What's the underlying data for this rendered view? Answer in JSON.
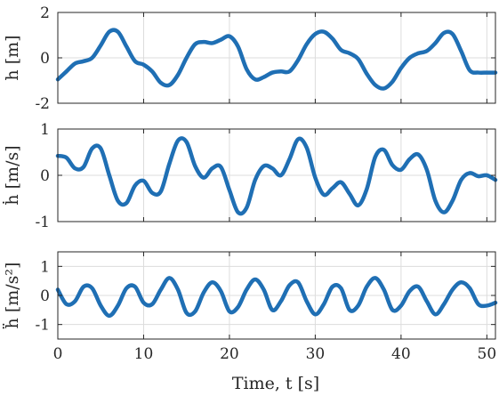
{
  "chart_data": [
    {
      "type": "line",
      "ylabel": "h [m]",
      "xlim": [
        0,
        51
      ],
      "ylim": [
        -2,
        2
      ],
      "yticks": [
        "-2",
        "0",
        "2"
      ],
      "grid": true,
      "color": "#1f6fb4",
      "x": [
        0,
        1,
        2,
        3,
        4,
        5,
        6,
        7,
        8,
        9,
        10,
        11,
        12,
        13,
        14,
        15,
        16,
        17,
        18,
        19,
        20,
        21,
        22,
        23,
        24,
        25,
        26,
        27,
        28,
        29,
        30,
        31,
        32,
        33,
        34,
        35,
        36,
        37,
        38,
        39,
        40,
        41,
        42,
        43,
        44,
        45,
        46,
        47,
        48,
        49,
        50,
        51
      ],
      "y": [
        -0.95,
        -0.6,
        -0.25,
        -0.15,
        0.0,
        0.55,
        1.15,
        1.15,
        0.5,
        -0.15,
        -0.3,
        -0.6,
        -1.1,
        -1.2,
        -0.75,
        0.0,
        0.6,
        0.7,
        0.65,
        0.8,
        0.95,
        0.5,
        -0.5,
        -0.95,
        -0.85,
        -0.65,
        -0.6,
        -0.6,
        -0.1,
        0.6,
        1.05,
        1.15,
        0.85,
        0.35,
        0.2,
        -0.05,
        -0.7,
        -1.2,
        -1.35,
        -1.05,
        -0.45,
        0.0,
        0.2,
        0.3,
        0.65,
        1.1,
        1.05,
        0.3,
        -0.55,
        -0.65,
        -0.65,
        -0.65
      ]
    },
    {
      "type": "line",
      "ylabel": "ḣ [m/s]",
      "xlim": [
        0,
        51
      ],
      "ylim": [
        -1,
        1
      ],
      "yticks": [
        "-1",
        "0",
        "1"
      ],
      "grid": true,
      "color": "#1f6fb4",
      "x": [
        0,
        1,
        2,
        3,
        4,
        5,
        6,
        7,
        8,
        9,
        10,
        11,
        12,
        13,
        14,
        15,
        16,
        17,
        18,
        19,
        20,
        21,
        22,
        23,
        24,
        25,
        26,
        27,
        28,
        29,
        30,
        31,
        32,
        33,
        34,
        35,
        36,
        37,
        38,
        39,
        40,
        41,
        42,
        43,
        44,
        45,
        46,
        47,
        48,
        49,
        50,
        51
      ],
      "y": [
        0.42,
        0.38,
        0.15,
        0.18,
        0.58,
        0.58,
        0.0,
        -0.55,
        -0.6,
        -0.22,
        -0.12,
        -0.38,
        -0.35,
        0.25,
        0.75,
        0.72,
        0.2,
        -0.05,
        0.15,
        0.18,
        -0.32,
        -0.8,
        -0.7,
        -0.1,
        0.2,
        0.15,
        0.0,
        0.35,
        0.78,
        0.6,
        -0.05,
        -0.42,
        -0.28,
        -0.15,
        -0.4,
        -0.65,
        -0.3,
        0.4,
        0.55,
        0.22,
        0.12,
        0.35,
        0.45,
        0.12,
        -0.55,
        -0.8,
        -0.55,
        -0.1,
        0.05,
        -0.02,
        0.0,
        -0.1
      ]
    },
    {
      "type": "line",
      "ylabel": "ḧ [m/s²]",
      "xlabel": "Time, t [s]",
      "xlim": [
        0,
        51
      ],
      "ylim": [
        -1.5,
        1.5
      ],
      "yticks": [
        "-1",
        "0",
        "1"
      ],
      "xticks": [
        "0",
        "10",
        "20",
        "30",
        "40",
        "50"
      ],
      "grid": true,
      "color": "#1f6fb4",
      "x": [
        0,
        1,
        2,
        3,
        4,
        5,
        6,
        7,
        8,
        9,
        10,
        11,
        12,
        13,
        14,
        15,
        16,
        17,
        18,
        19,
        20,
        21,
        22,
        23,
        24,
        25,
        26,
        27,
        28,
        29,
        30,
        31,
        32,
        33,
        34,
        35,
        36,
        37,
        38,
        39,
        40,
        41,
        42,
        43,
        44,
        45,
        46,
        47,
        48,
        49,
        50,
        51
      ],
      "y": [
        0.2,
        -0.3,
        -0.2,
        0.3,
        0.25,
        -0.35,
        -0.7,
        -0.35,
        0.25,
        0.3,
        -0.25,
        -0.3,
        0.2,
        0.6,
        0.2,
        -0.6,
        -0.55,
        0.1,
        0.45,
        0.15,
        -0.55,
        -0.4,
        0.2,
        0.55,
        0.2,
        -0.5,
        -0.2,
        0.35,
        0.45,
        -0.2,
        -0.65,
        -0.3,
        0.3,
        0.25,
        -0.5,
        -0.35,
        0.3,
        0.6,
        0.2,
        -0.5,
        -0.35,
        0.15,
        0.3,
        -0.2,
        -0.65,
        -0.3,
        0.2,
        0.45,
        0.25,
        -0.3,
        -0.35,
        -0.25
      ]
    }
  ]
}
